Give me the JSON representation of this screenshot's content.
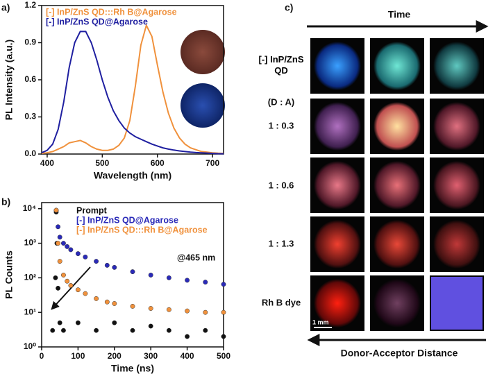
{
  "chart_data": [
    {
      "type": "line",
      "label": "a)",
      "x_label": "Wavelength (nm)",
      "y_label": "PL Intensity (a.u.)",
      "x": [
        390,
        400,
        410,
        420,
        430,
        440,
        450,
        460,
        470,
        480,
        490,
        500,
        510,
        520,
        530,
        540,
        550,
        560,
        570,
        580,
        590,
        600,
        610,
        620,
        630,
        640,
        650,
        660,
        670,
        680,
        690,
        700,
        710,
        720
      ],
      "series": [
        {
          "name": "[-] InP/ZnS QD:::Rh B@Agarose",
          "color": "#f0913c",
          "values": [
            0.005,
            0.01,
            0.02,
            0.04,
            0.06,
            0.09,
            0.1,
            0.11,
            0.09,
            0.06,
            0.04,
            0.03,
            0.03,
            0.04,
            0.07,
            0.13,
            0.27,
            0.55,
            0.88,
            1.04,
            0.95,
            0.72,
            0.5,
            0.33,
            0.21,
            0.13,
            0.08,
            0.05,
            0.035,
            0.02,
            0.015,
            0.01,
            0.007,
            0.005
          ]
        },
        {
          "name": "[-] InP/ZnS QD@Agarose",
          "color": "#1f1fa0",
          "values": [
            0.01,
            0.03,
            0.08,
            0.2,
            0.42,
            0.7,
            0.9,
            0.99,
            0.99,
            0.9,
            0.76,
            0.6,
            0.46,
            0.35,
            0.27,
            0.21,
            0.17,
            0.14,
            0.12,
            0.1,
            0.08,
            0.065,
            0.05,
            0.04,
            0.032,
            0.025,
            0.02,
            0.015,
            0.012,
            0.01,
            0.008,
            0.005,
            0.003,
            0.002
          ]
        }
      ],
      "xlim": [
        390,
        720
      ],
      "xticks": [
        400,
        500,
        600,
        700
      ],
      "ylim": [
        0,
        1.2
      ],
      "yticks": [
        {
          "value": 0,
          "label": "0.0"
        },
        0.3,
        0.6,
        0.9,
        1.2
      ],
      "legend": "top-left"
    },
    {
      "type": "scatter",
      "label": "b)",
      "x_label": "Time (ns)",
      "y_label": "PL Counts",
      "log_y": true,
      "series": [
        {
          "name": "Prompt",
          "color": "#111111",
          "x": [
            30,
            38,
            40,
            42,
            45,
            50,
            60,
            100,
            150,
            200,
            250,
            300,
            350,
            400,
            450,
            500
          ],
          "values": [
            3,
            100,
            8000,
            1000,
            50,
            5,
            3,
            5,
            3,
            5,
            3,
            4,
            3,
            2,
            3,
            2
          ]
        },
        {
          "name": "[-] InP/ZnS QD@Agarose",
          "color": "#2a2ab8",
          "x": [
            40,
            45,
            50,
            60,
            70,
            80,
            100,
            120,
            150,
            180,
            200,
            250,
            300,
            350,
            400,
            450,
            500
          ],
          "values": [
            9000,
            3000,
            1500,
            1000,
            800,
            650,
            500,
            400,
            300,
            230,
            200,
            150,
            120,
            100,
            85,
            75,
            65
          ]
        },
        {
          "name": "[-] InP/ZnS QD:::Rh B@Agarose",
          "color": "#f0913c",
          "x": [
            40,
            45,
            50,
            60,
            70,
            80,
            100,
            120,
            150,
            180,
            200,
            250,
            300,
            350,
            400,
            450,
            500
          ],
          "values": [
            9000,
            1000,
            300,
            120,
            80,
            60,
            45,
            35,
            25,
            20,
            18,
            15,
            13,
            12,
            11,
            10,
            10
          ]
        }
      ],
      "xlim": [
        0,
        500
      ],
      "xticks": [
        0,
        100,
        200,
        300,
        400,
        500
      ],
      "ylim": [
        1,
        15000
      ],
      "yticks": [
        {
          "value": 1,
          "label": "10⁰"
        },
        {
          "value": 10,
          "label": "10¹"
        },
        {
          "value": 100,
          "label": "10²"
        },
        {
          "value": 1000,
          "label": "10³"
        },
        {
          "value": 10000,
          "label": "10⁴"
        }
      ],
      "annotation": "@465 nm",
      "legend": "top-right"
    }
  ],
  "panel_c": {
    "label": "c)",
    "top_axis": "Time",
    "bottom_axis": "Donor-Acceptor Distance",
    "row_header": "[-] InP/ZnS QD",
    "ratio_header": "(D : A)",
    "rows": [
      "1 : 0.3",
      "1 : 0.6",
      "1 : 1.3",
      "Rh B dye"
    ],
    "scale_bar": "1 mm"
  }
}
